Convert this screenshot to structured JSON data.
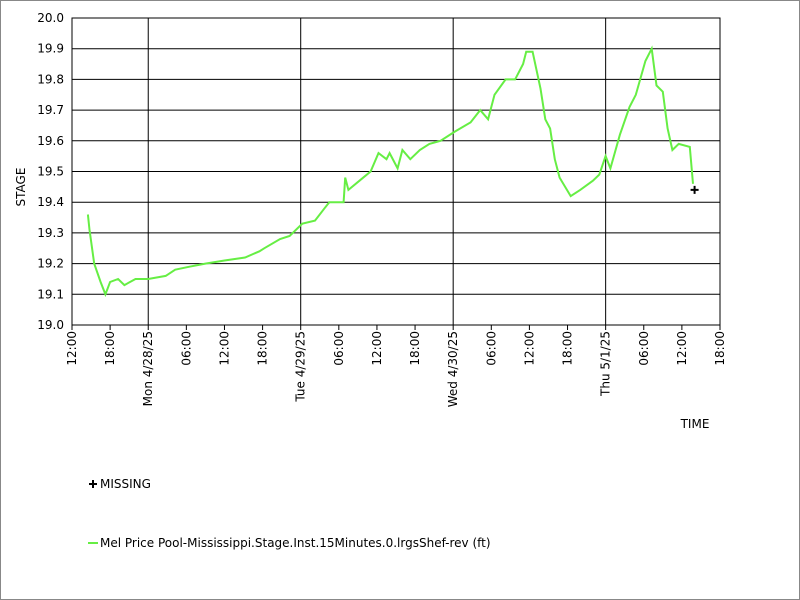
{
  "chart_data": {
    "type": "line",
    "y_label": "STAGE",
    "x_label": "TIME",
    "xlim": [
      "2025-04-27T12:00",
      "2025-05-01T18:00"
    ],
    "xticks": [
      {
        "value": "2025-04-27T12:00",
        "label": "12:00"
      },
      {
        "value": "2025-04-27T18:00",
        "label": "18:00"
      },
      {
        "value": "2025-04-28T00:00",
        "label": "Mon 4/28/25"
      },
      {
        "value": "2025-04-28T06:00",
        "label": "06:00"
      },
      {
        "value": "2025-04-28T12:00",
        "label": "12:00"
      },
      {
        "value": "2025-04-28T18:00",
        "label": "18:00"
      },
      {
        "value": "2025-04-29T00:00",
        "label": "Tue 4/29/25"
      },
      {
        "value": "2025-04-29T06:00",
        "label": "06:00"
      },
      {
        "value": "2025-04-29T12:00",
        "label": "12:00"
      },
      {
        "value": "2025-04-29T18:00",
        "label": "18:00"
      },
      {
        "value": "2025-04-30T00:00",
        "label": "Wed 4/30/25"
      },
      {
        "value": "2025-04-30T06:00",
        "label": "06:00"
      },
      {
        "value": "2025-04-30T12:00",
        "label": "12:00"
      },
      {
        "value": "2025-04-30T18:00",
        "label": "18:00"
      },
      {
        "value": "2025-05-01T00:00",
        "label": "Thu 5/1/25"
      },
      {
        "value": "2025-05-01T06:00",
        "label": "06:00"
      },
      {
        "value": "2025-05-01T12:00",
        "label": "12:00"
      },
      {
        "value": "2025-05-01T18:00",
        "label": "18:00"
      }
    ],
    "ylim": [
      19.0,
      20.0
    ],
    "yticks": [
      {
        "value": 19.0,
        "label": "19.0"
      },
      19.1,
      19.2,
      19.3,
      19.4,
      19.5,
      19.6,
      19.7,
      19.8,
      19.9,
      {
        "value": 20.0,
        "label": "20.0"
      }
    ],
    "grid": true,
    "series": [
      {
        "name": "MISSING",
        "color": "#000000",
        "marker": "plus",
        "x": [
          "2025-05-01T14:00"
        ],
        "values": [
          19.44
        ]
      },
      {
        "name": "Mel Price Pool-Mississippi.Stage.Inst.15Minutes.0.lrgsShef-rev (ft)",
        "color": "#66ee44",
        "marker": "line",
        "x": [
          "2025-04-27T14:30",
          "2025-04-27T14:45",
          "2025-04-27T15:30",
          "2025-04-27T16:30",
          "2025-04-27T17:15",
          "2025-04-27T18:00",
          "2025-04-27T19:15",
          "2025-04-27T20:15",
          "2025-04-27T22:00",
          "2025-04-28T00:00",
          "2025-04-28T02:45",
          "2025-04-28T04:15",
          "2025-04-28T06:30",
          "2025-04-28T09:00",
          "2025-04-28T12:00",
          "2025-04-28T15:15",
          "2025-04-28T17:30",
          "2025-04-28T18:15",
          "2025-04-28T20:45",
          "2025-04-28T22:15",
          "2025-04-29T00:15",
          "2025-04-29T02:15",
          "2025-04-29T03:45",
          "2025-04-29T04:30",
          "2025-04-29T06:45",
          "2025-04-29T07:00",
          "2025-04-29T07:30",
          "2025-04-29T09:15",
          "2025-04-29T11:00",
          "2025-04-29T12:15",
          "2025-04-29T13:30",
          "2025-04-29T14:00",
          "2025-04-29T15:15",
          "2025-04-29T16:00",
          "2025-04-29T17:15",
          "2025-04-29T18:45",
          "2025-04-29T20:15",
          "2025-04-29T22:00",
          "2025-04-30T00:15",
          "2025-04-30T02:45",
          "2025-04-30T04:15",
          "2025-04-30T05:30",
          "2025-04-30T06:30",
          "2025-04-30T08:15",
          "2025-04-30T09:45",
          "2025-04-30T11:00",
          "2025-04-30T11:30",
          "2025-04-30T12:30",
          "2025-04-30T13:45",
          "2025-04-30T14:30",
          "2025-04-30T15:15",
          "2025-04-30T16:00",
          "2025-04-30T16:45",
          "2025-04-30T18:30",
          "2025-04-30T20:00",
          "2025-04-30T22:00",
          "2025-04-30T23:00",
          "2025-05-01T00:00",
          "2025-05-01T00:45",
          "2025-05-01T02:15",
          "2025-05-01T03:45",
          "2025-05-01T04:45",
          "2025-05-01T06:15",
          "2025-05-01T07:15",
          "2025-05-01T08:00",
          "2025-05-01T09:00",
          "2025-05-01T09:45",
          "2025-05-01T10:30",
          "2025-05-01T11:30",
          "2025-05-01T13:15",
          "2025-05-01T13:45"
        ],
        "values": [
          19.36,
          19.31,
          19.2,
          19.14,
          19.1,
          19.14,
          19.15,
          19.13,
          19.15,
          19.15,
          19.16,
          19.18,
          19.19,
          19.2,
          19.21,
          19.22,
          19.24,
          19.25,
          19.28,
          19.29,
          19.33,
          19.34,
          19.38,
          19.4,
          19.4,
          19.48,
          19.44,
          19.47,
          19.5,
          19.56,
          19.54,
          19.56,
          19.51,
          19.57,
          19.54,
          19.57,
          19.59,
          19.6,
          19.63,
          19.66,
          19.7,
          19.67,
          19.75,
          19.8,
          19.8,
          19.85,
          19.89,
          19.89,
          19.77,
          19.67,
          19.64,
          19.54,
          19.48,
          19.42,
          19.44,
          19.47,
          19.49,
          19.55,
          19.51,
          19.62,
          19.71,
          19.75,
          19.86,
          19.9,
          19.78,
          19.76,
          19.64,
          19.57,
          19.59,
          19.58,
          19.46
        ]
      }
    ]
  }
}
